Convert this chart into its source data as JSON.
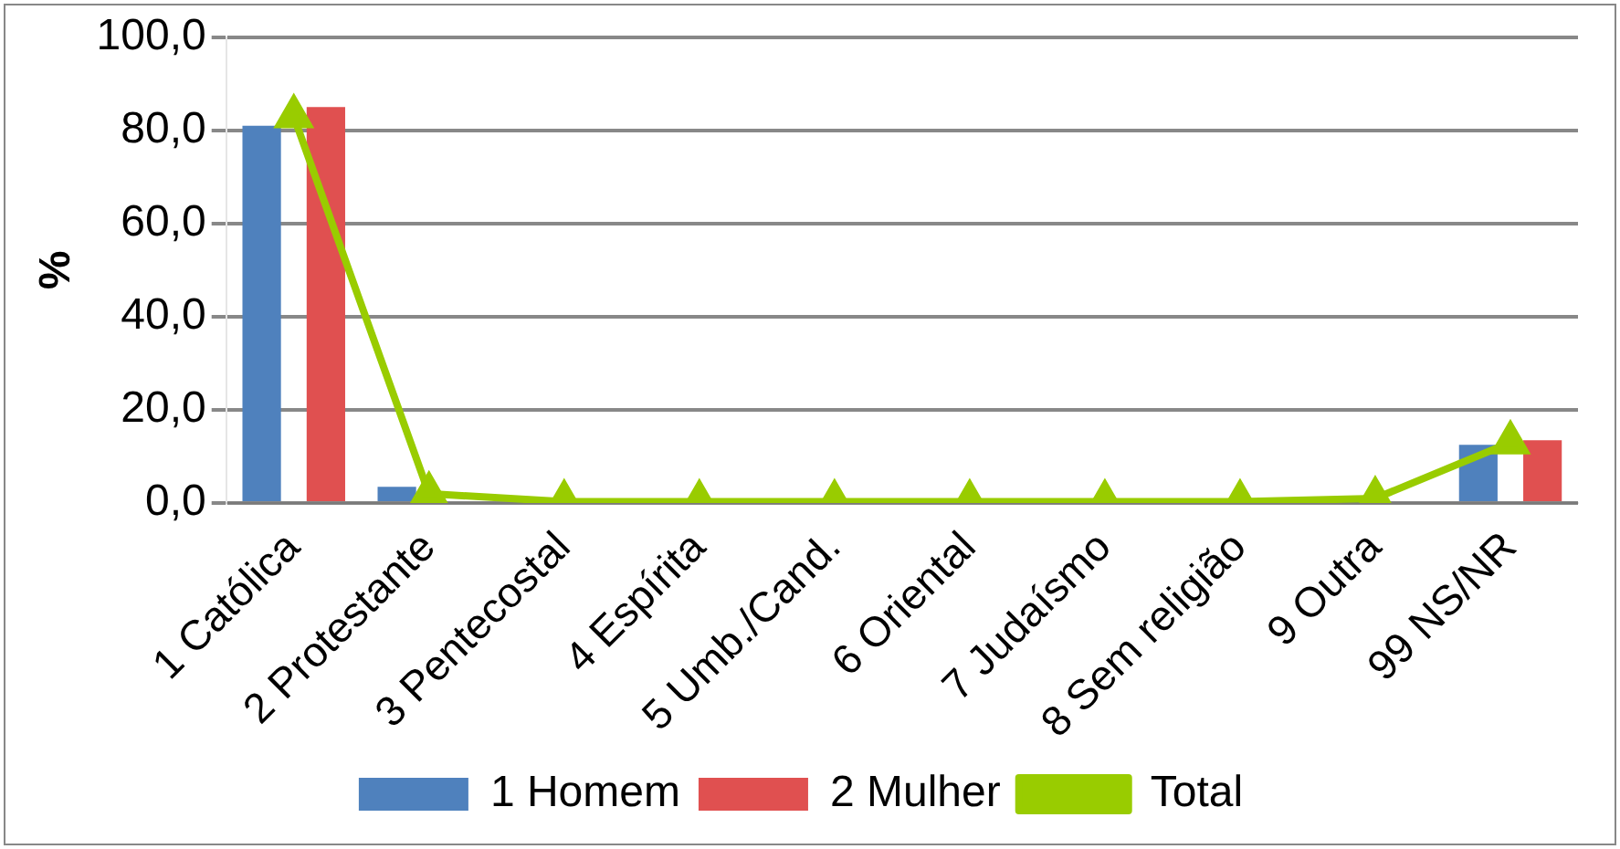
{
  "chart_data": {
    "type": "bar",
    "ylabel": "%",
    "categories": [
      "1 Católica",
      "2 Protestante",
      "3 Pentecostal",
      "4 Espírita",
      "5 Umb./Cand.",
      "6 Oriental",
      "7 Judaísmo",
      "8 Sem religião",
      "9 Outra",
      "99 NS/NR"
    ],
    "series": [
      {
        "name": "1 Homem",
        "color": "#4f81bd",
        "values": [
          81,
          3.5,
          0,
          0,
          0,
          0,
          0,
          0,
          0,
          12.5
        ]
      },
      {
        "name": "2 Mulher",
        "color": "#e05050",
        "values": [
          85,
          null,
          0,
          0,
          0,
          0,
          0,
          0,
          0,
          13.5
        ]
      },
      {
        "name": "Total",
        "type": "line",
        "color": "#99cc00",
        "values": [
          83,
          2,
          0.3,
          0.3,
          0.3,
          0.3,
          0.3,
          0.3,
          1,
          13
        ]
      }
    ],
    "ylim": [
      0,
      100
    ],
    "yticks": [
      {
        "value": 0,
        "label": "0,0"
      },
      {
        "value": 20,
        "label": "20,0"
      },
      {
        "value": 40,
        "label": "40,0"
      },
      {
        "value": 60,
        "label": "60,0"
      },
      {
        "value": 80,
        "label": "80,0"
      },
      {
        "value": 100,
        "label": "100,0"
      }
    ],
    "grid": "y",
    "legend": "bottom",
    "marker": "triangle"
  }
}
